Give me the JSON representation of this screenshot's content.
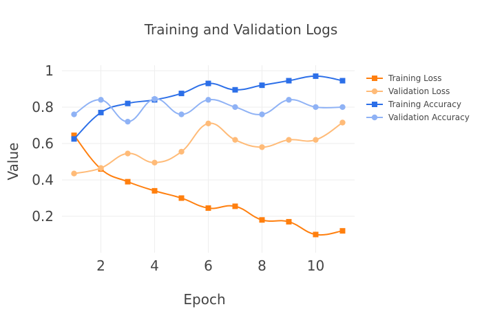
{
  "chart_data": {
    "type": "line",
    "title": "Training and Validation Logs",
    "xlabel": "Epoch",
    "ylabel": "Value",
    "x": [
      1,
      2,
      3,
      4,
      5,
      6,
      7,
      8,
      9,
      10,
      11
    ],
    "xlim": [
      0.55,
      11.45
    ],
    "ylim": [
      0.0,
      1.03
    ],
    "x_ticks": [
      "2",
      "4",
      "6",
      "8",
      "10"
    ],
    "y_ticks": [
      "0.2",
      "0.4",
      "0.6",
      "0.8",
      "1"
    ],
    "grid": true,
    "legend_position": "top-right",
    "line_shape": "spline",
    "series": [
      {
        "name": "Training Loss",
        "color": "#ff7f0e",
        "marker": "square",
        "values": [
          0.645,
          0.46,
          0.39,
          0.34,
          0.3,
          0.245,
          0.255,
          0.18,
          0.17,
          0.1,
          0.12
        ]
      },
      {
        "name": "Validation Loss",
        "color": "#ffbb78",
        "marker": "circle",
        "values": [
          0.435,
          0.465,
          0.545,
          0.495,
          0.555,
          0.71,
          0.62,
          0.58,
          0.62,
          0.62,
          0.715
        ]
      },
      {
        "name": "Training Accuracy",
        "color": "#2c6fe8",
        "marker": "square",
        "values": [
          0.625,
          0.77,
          0.82,
          0.84,
          0.875,
          0.93,
          0.895,
          0.92,
          0.945,
          0.97,
          0.945
        ]
      },
      {
        "name": "Validation Accuracy",
        "color": "#8fb2f5",
        "marker": "circle",
        "values": [
          0.76,
          0.84,
          0.72,
          0.845,
          0.76,
          0.84,
          0.8,
          0.76,
          0.84,
          0.8,
          0.8
        ]
      }
    ]
  }
}
